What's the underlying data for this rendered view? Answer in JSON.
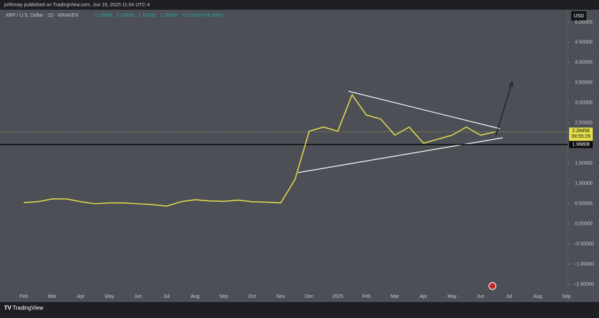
{
  "chart_data": {
    "type": "line",
    "subtitle": "jo0hmay published on TradingView.com, Jun 16, 2025 11:04 UTC-4",
    "title": "XRP / U.S. Dollar · 1D · KRAKEN",
    "ohlc": [
      "2.16648",
      "2.29300",
      "2.15282",
      "2.28458",
      "+0.11810 (+5.45%)"
    ],
    "currency": "USD",
    "brand": "TradingView",
    "categories": [
      "Feb",
      null,
      "Mar",
      null,
      "Apr",
      null,
      "May",
      null,
      "Jun",
      null,
      "Jul",
      null,
      "Aug",
      null,
      "Sep",
      null,
      "Oct",
      null,
      "Nov",
      null,
      "Dec",
      null,
      "2025",
      null,
      "Feb",
      null,
      "Mar",
      null,
      "Apr",
      null,
      "May",
      null,
      "Jun",
      null,
      "Jul",
      null,
      "Aug",
      null,
      "Sep"
    ],
    "values": [
      0.53,
      0.55,
      0.62,
      0.62,
      0.55,
      0.5,
      0.52,
      0.52,
      0.5,
      0.48,
      0.44,
      0.55,
      0.6,
      0.57,
      0.56,
      0.59,
      0.55,
      0.54,
      0.52,
      1.1,
      2.3,
      2.4,
      2.3,
      3.2,
      2.7,
      2.6,
      2.2,
      2.4,
      2.0,
      2.1,
      2.2,
      2.4,
      2.2,
      2.28,
      null,
      null,
      null,
      null,
      null
    ],
    "color": "#e6e04a",
    "ylim": [
      -1.78,
      5.24
    ],
    "yticks": [
      {
        "value": 5,
        "label": "5.00000"
      },
      {
        "value": 4.5,
        "label": "4.50000"
      },
      {
        "value": 4,
        "label": "4.00000"
      },
      {
        "value": 3.5,
        "label": "3.50000"
      },
      {
        "value": 3,
        "label": "3.00000"
      },
      {
        "value": 2.5,
        "label": "2.50000"
      },
      {
        "value": 1.5,
        "label": "1.50000"
      },
      {
        "value": 1,
        "label": "1.00000"
      },
      {
        "value": 0.5,
        "label": "0.50000"
      },
      {
        "value": 0,
        "label": "0.00000"
      },
      {
        "value": -0.5,
        "label": "−0.50000"
      },
      {
        "value": -1,
        "label": "−1.00000"
      },
      {
        "value": -1.5,
        "label": "−1.50000"
      }
    ],
    "hline": {
      "value": 1.96808,
      "label": "1.96808"
    },
    "last_price": {
      "value": 2.28458,
      "label": "2.28458"
    },
    "countdown": "08:55:29"
  }
}
